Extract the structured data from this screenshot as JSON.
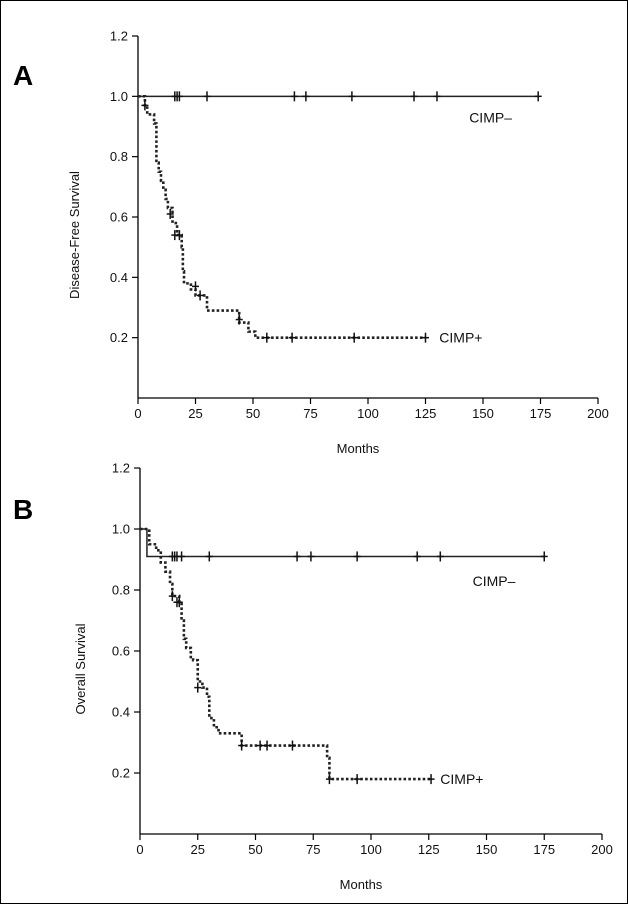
{
  "chart_data": [
    {
      "type": "line",
      "panel_label": "A",
      "xlabel": "Months",
      "ylabel": "Disease-Free Survival",
      "xlim": [
        0,
        200
      ],
      "ylim": [
        0,
        1.2
      ],
      "x_ticks": [
        0,
        25,
        50,
        75,
        100,
        125,
        150,
        175,
        200
      ],
      "y_ticks": [
        0.2,
        0.4,
        0.6,
        0.8,
        1.0,
        1.2
      ],
      "grid": false,
      "series": [
        {
          "name": "CIMP–",
          "style": "solid",
          "steps": [
            [
              0,
              1.0
            ],
            [
              174,
              1.0
            ]
          ],
          "censored": [
            [
              16,
              1.0
            ],
            [
              17,
              1.0
            ],
            [
              18,
              1.0
            ],
            [
              30,
              1.0
            ],
            [
              68,
              1.0
            ],
            [
              73,
              1.0
            ],
            [
              93,
              1.0
            ],
            [
              120,
              1.0
            ],
            [
              130,
              1.0
            ],
            [
              174,
              1.0
            ]
          ],
          "label_at": [
            144,
            0.93
          ]
        },
        {
          "name": "CIMP+",
          "style": "dotted",
          "steps": [
            [
              0,
              1.0
            ],
            [
              3,
              0.97
            ],
            [
              4,
              0.94
            ],
            [
              7,
              0.91
            ],
            [
              8,
              0.78
            ],
            [
              9,
              0.75
            ],
            [
              10,
              0.72
            ],
            [
              11,
              0.69
            ],
            [
              12,
              0.66
            ],
            [
              13,
              0.63
            ],
            [
              15,
              0.58
            ],
            [
              17,
              0.54
            ],
            [
              19,
              0.5
            ],
            [
              19.5,
              0.42
            ],
            [
              20,
              0.38
            ],
            [
              23,
              0.36
            ],
            [
              25,
              0.34
            ],
            [
              30,
              0.29
            ],
            [
              44,
              0.25
            ],
            [
              47,
              0.25
            ],
            [
              48,
              0.22
            ],
            [
              51,
              0.2
            ],
            [
              125,
              0.2
            ]
          ],
          "censored": [
            [
              3,
              0.97
            ],
            [
              14,
              0.61
            ],
            [
              16,
              0.54
            ],
            [
              18,
              0.54
            ],
            [
              25,
              0.37
            ],
            [
              27,
              0.34
            ],
            [
              44,
              0.26
            ],
            [
              56,
              0.2
            ],
            [
              67,
              0.2
            ],
            [
              94,
              0.2
            ],
            [
              125,
              0.2
            ]
          ],
          "label_at": [
            131,
            0.2
          ]
        }
      ]
    },
    {
      "type": "line",
      "panel_label": "B",
      "xlabel": "Months",
      "ylabel": "Overall Survival",
      "xlim": [
        0,
        200
      ],
      "ylim": [
        0,
        1.2
      ],
      "x_ticks": [
        0,
        25,
        50,
        75,
        100,
        125,
        150,
        175,
        200
      ],
      "y_ticks": [
        0.2,
        0.4,
        0.6,
        0.8,
        1.0,
        1.2
      ],
      "grid": false,
      "series": [
        {
          "name": "CIMP–",
          "style": "solid",
          "steps": [
            [
              0,
              1.0
            ],
            [
              3,
              1.0
            ],
            [
              3,
              0.91
            ],
            [
              175,
              0.91
            ]
          ],
          "censored": [
            [
              14,
              0.91
            ],
            [
              15,
              0.91
            ],
            [
              16,
              0.91
            ],
            [
              18,
              0.91
            ],
            [
              30,
              0.91
            ],
            [
              68,
              0.91
            ],
            [
              74,
              0.91
            ],
            [
              94,
              0.91
            ],
            [
              120,
              0.91
            ],
            [
              130,
              0.91
            ],
            [
              175,
              0.91
            ]
          ],
          "label_at": [
            144,
            0.83
          ]
        },
        {
          "name": "CIMP+",
          "style": "dotted",
          "steps": [
            [
              0,
              1.0
            ],
            [
              4,
              0.95
            ],
            [
              7,
              0.93
            ],
            [
              9,
              0.89
            ],
            [
              11,
              0.86
            ],
            [
              13,
              0.82
            ],
            [
              14,
              0.78
            ],
            [
              17,
              0.76
            ],
            [
              18,
              0.7
            ],
            [
              19,
              0.64
            ],
            [
              20,
              0.61
            ],
            [
              22,
              0.58
            ],
            [
              23,
              0.57
            ],
            [
              25,
              0.5
            ],
            [
              27,
              0.48
            ],
            [
              29,
              0.45
            ],
            [
              30,
              0.38
            ],
            [
              32,
              0.35
            ],
            [
              34,
              0.33
            ],
            [
              44,
              0.29
            ],
            [
              80,
              0.29
            ],
            [
              81,
              0.25
            ],
            [
              82,
              0.18
            ],
            [
              126,
              0.18
            ]
          ],
          "censored": [
            [
              14,
              0.78
            ],
            [
              16,
              0.76
            ],
            [
              17,
              0.76
            ],
            [
              25,
              0.48
            ],
            [
              44,
              0.29
            ],
            [
              52,
              0.29
            ],
            [
              55,
              0.29
            ],
            [
              66,
              0.29
            ],
            [
              82,
              0.18
            ],
            [
              94,
              0.18
            ],
            [
              126,
              0.18
            ]
          ],
          "label_at": [
            130,
            0.18
          ]
        }
      ]
    }
  ]
}
